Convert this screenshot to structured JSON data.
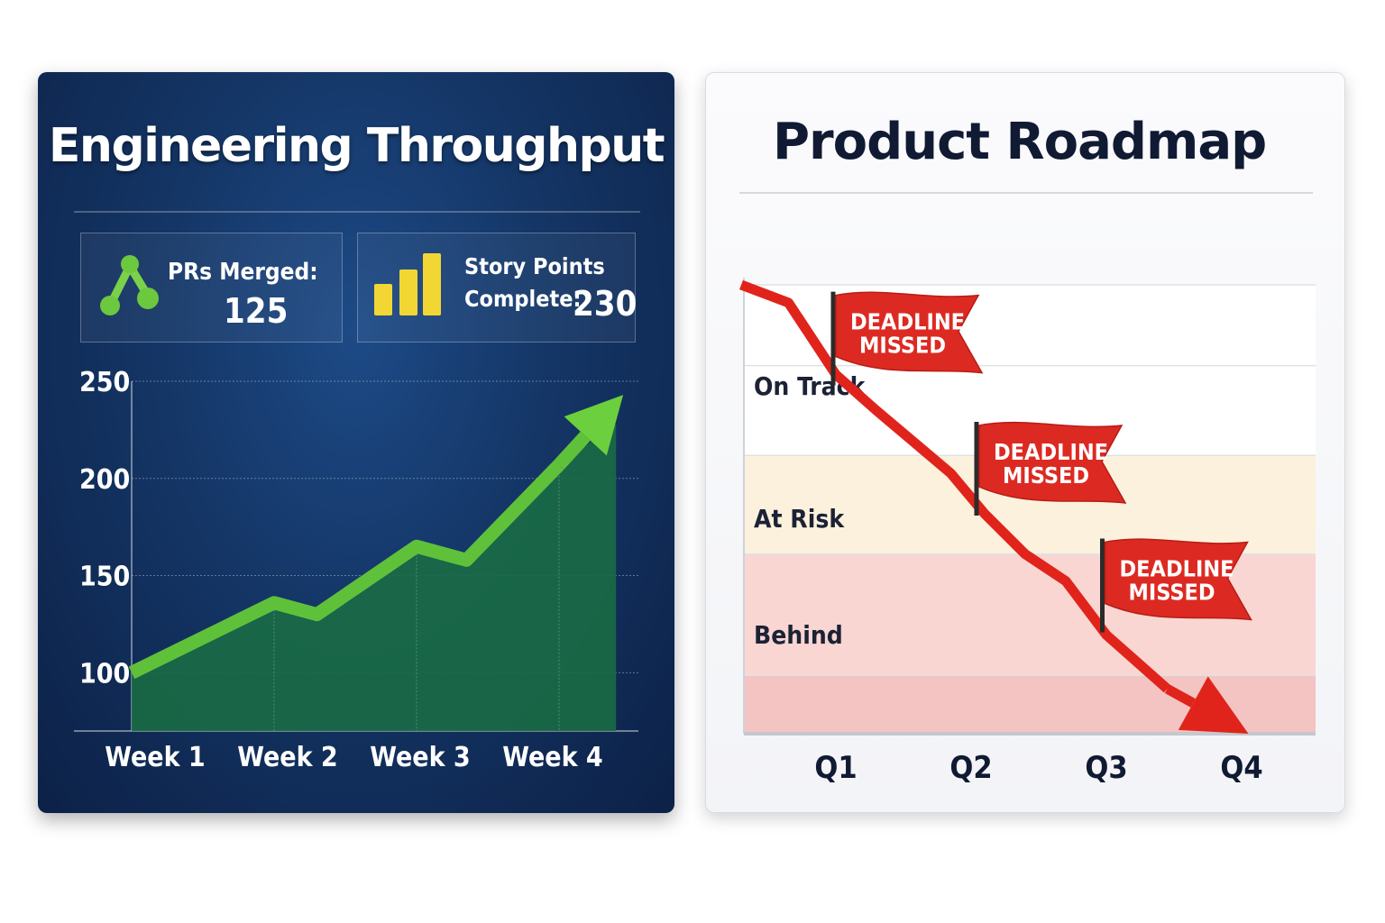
{
  "left_panel": {
    "title": "Engineering Throughput",
    "kpis": {
      "prs_label": "PRs Merged:",
      "prs_value": "125",
      "prs_icon": "git-merge-icon",
      "story_label_1": "Story Points",
      "story_label_2": "Complete:",
      "story_value": "230",
      "story_icon": "bar-chart-icon"
    }
  },
  "right_panel": {
    "title": "Product Roadmap"
  },
  "chart_data": [
    {
      "type": "area",
      "title": "",
      "xlabel": "",
      "ylabel": "",
      "categories": [
        "Week 1",
        "Week 2",
        "Week 3",
        "Week 4"
      ],
      "ylim": [
        70,
        250
      ],
      "yticks": [
        250,
        200,
        150,
        100
      ],
      "grid": true,
      "series": [
        {
          "x": [
            0.0,
            1.0,
            1.3,
            2.0,
            2.35,
            3.0,
            3.2
          ],
          "y": [
            100,
            136,
            130,
            165,
            158,
            207,
            231
          ],
          "color": "#5fc13a",
          "fill": "#1a6b45"
        }
      ]
    },
    {
      "type": "line",
      "title": "",
      "xlabel": "",
      "ylabel": "",
      "categories": [
        "Q1",
        "Q2",
        "Q3",
        "Q4"
      ],
      "bands": [
        {
          "label": "On Track",
          "from": 0.62,
          "to": 1.0,
          "color": "#ffffff"
        },
        {
          "label": "At Risk",
          "from": 0.4,
          "to": 0.62,
          "color": "#fbf1dc"
        },
        {
          "label": "Behind",
          "from": 0.0,
          "to": 0.4,
          "color": "#f9d6d1"
        }
      ],
      "series": [
        {
          "x": [
            -0.7,
            -0.35,
            0.0,
            0.3,
            0.85,
            1.1,
            1.4,
            1.7,
            2.0,
            2.45,
            3.05
          ],
          "y": [
            1.0,
            0.96,
            0.8,
            0.72,
            0.58,
            0.49,
            0.4,
            0.34,
            0.22,
            0.1,
            0.0
          ],
          "color": "#e0241b"
        }
      ],
      "annotations": [
        {
          "x": -0.02,
          "y": 0.8,
          "label_1": "DEADLINE",
          "label_2": "MISSED"
        },
        {
          "x": 1.04,
          "y": 0.51,
          "label_1": "DEADLINE",
          "label_2": "MISSED"
        },
        {
          "x": 1.97,
          "y": 0.25,
          "label_1": "DEADLINE",
          "label_2": "MISSED"
        }
      ]
    }
  ]
}
